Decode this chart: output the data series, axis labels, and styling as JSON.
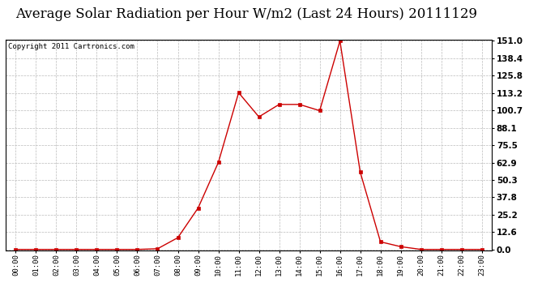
{
  "title": "Average Solar Radiation per Hour W/m2 (Last 24 Hours) 20111129",
  "copyright": "Copyright 2011 Cartronics.com",
  "hours": [
    "00:00",
    "01:00",
    "02:00",
    "03:00",
    "04:00",
    "05:00",
    "06:00",
    "07:00",
    "08:00",
    "09:00",
    "10:00",
    "11:00",
    "12:00",
    "13:00",
    "14:00",
    "15:00",
    "16:00",
    "17:00",
    "18:00",
    "19:00",
    "20:00",
    "21:00",
    "22:00",
    "23:00"
  ],
  "values": [
    0.0,
    0.0,
    0.0,
    0.0,
    0.0,
    0.0,
    0.0,
    0.5,
    8.5,
    30.0,
    63.0,
    113.5,
    96.0,
    105.0,
    105.0,
    100.5,
    151.0,
    56.0,
    5.5,
    2.0,
    0.0,
    0.0,
    0.0,
    0.0
  ],
  "line_color": "#cc0000",
  "marker": "s",
  "marker_size": 3,
  "bg_color": "#ffffff",
  "plot_bg_color": "#ffffff",
  "grid_color": "#bbbbbb",
  "yticks": [
    0.0,
    12.6,
    25.2,
    37.8,
    50.3,
    62.9,
    75.5,
    88.1,
    100.7,
    113.2,
    125.8,
    138.4,
    151.0
  ],
  "ymax": 151.0,
  "ymin": 0.0,
  "title_fontsize": 12,
  "copyright_fontsize": 6.5
}
